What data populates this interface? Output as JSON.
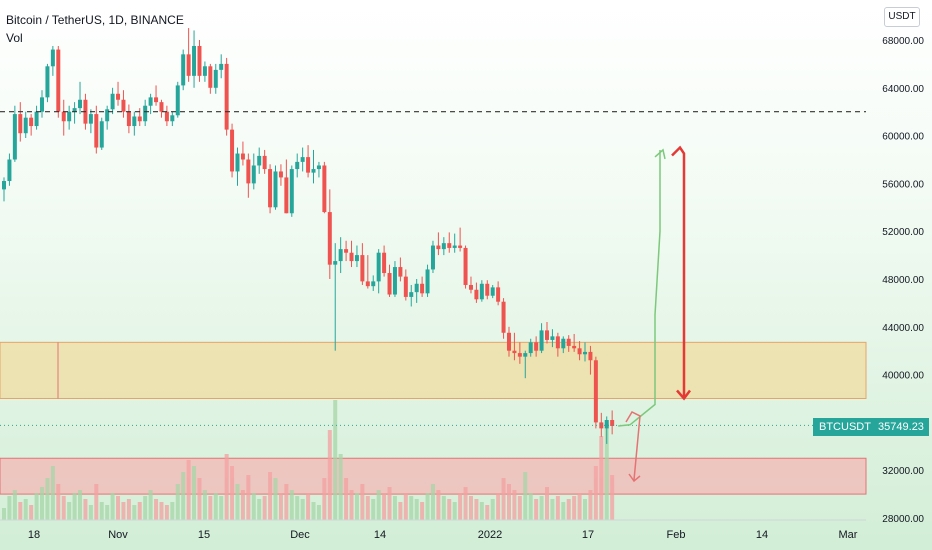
{
  "header": {
    "title": "Bitcoin / TetherUS, 1D, BINANCE",
    "indicator": "Vol",
    "currency": "USDT"
  },
  "last_price": {
    "symbol": "BTCUSDT",
    "value": "35749.23"
  },
  "colors": {
    "up": "#26a69a",
    "down": "#ef5350",
    "resistance_zone": "#f0dca0",
    "support_zone": "#f5b3b3",
    "background_top": "#ffffff",
    "background_bottom": "#d6f0d9",
    "arrow_up": "#7cc87c",
    "arrow_down": "#e53935"
  },
  "chart_data": {
    "type": "candlestick",
    "title": "Bitcoin / TetherUS, 1D, BINANCE",
    "ylim": [
      27000,
      70000
    ],
    "y_ticks": [
      "68000.00",
      "64000.00",
      "60000.00",
      "56000.00",
      "52000.00",
      "48000.00",
      "44000.00",
      "40000.00",
      "32000.00",
      "28000.00"
    ],
    "x_ticks": [
      "18",
      "Nov",
      "15",
      "Dec",
      "14",
      "2022",
      "17",
      "Feb",
      "14",
      "Mar"
    ],
    "x_tick_positions": [
      "2021-10-18",
      "2021-11-01",
      "2021-11-15",
      "2021-12-01",
      "2021-12-14",
      "2022-01-01",
      "2022-01-17",
      "2022-02-01",
      "2022-02-14",
      "2022-03-01"
    ],
    "candles_ohlc": [
      [
        55500,
        56500,
        54500,
        56200
      ],
      [
        56200,
        58500,
        55800,
        58000
      ],
      [
        58000,
        62500,
        57800,
        61800
      ],
      [
        61800,
        62800,
        59500,
        60200
      ],
      [
        60200,
        62000,
        59800,
        61500
      ],
      [
        61500,
        61800,
        60000,
        60800
      ],
      [
        60800,
        62500,
        60500,
        62000
      ],
      [
        62000,
        63800,
        61500,
        63200
      ],
      [
        63200,
        66000,
        62800,
        65800
      ],
      [
        65800,
        67500,
        65000,
        67200
      ],
      [
        67200,
        67500,
        61500,
        62000
      ],
      [
        62000,
        63000,
        60000,
        61200
      ],
      [
        61200,
        62500,
        60500,
        62000
      ],
      [
        62000,
        62800,
        61000,
        62300
      ],
      [
        62300,
        64500,
        61800,
        63000
      ],
      [
        63000,
        63500,
        60500,
        61000
      ],
      [
        61000,
        62200,
        60200,
        61800
      ],
      [
        61800,
        62500,
        58500,
        59000
      ],
      [
        59000,
        61500,
        58800,
        61200
      ],
      [
        61200,
        62500,
        60500,
        62200
      ],
      [
        62200,
        64000,
        61800,
        63500
      ],
      [
        63500,
        64500,
        62500,
        63000
      ],
      [
        63000,
        63800,
        61500,
        62000
      ],
      [
        62000,
        62600,
        60200,
        60800
      ],
      [
        60800,
        62000,
        60000,
        61600
      ],
      [
        61600,
        62300,
        60800,
        61200
      ],
      [
        61200,
        63000,
        60800,
        62500
      ],
      [
        62500,
        63500,
        61800,
        63200
      ],
      [
        63200,
        64200,
        62500,
        62800
      ],
      [
        62800,
        63000,
        61500,
        62000
      ],
      [
        62000,
        62500,
        60800,
        61200
      ],
      [
        61200,
        62000,
        60800,
        61700
      ],
      [
        61700,
        64500,
        61500,
        64200
      ],
      [
        64200,
        67200,
        63800,
        66800
      ],
      [
        66800,
        69000,
        64500,
        65000
      ],
      [
        65000,
        68800,
        64000,
        67500
      ],
      [
        67500,
        68000,
        64500,
        65000
      ],
      [
        65000,
        66200,
        64500,
        65800
      ],
      [
        65800,
        66000,
        63500,
        64000
      ],
      [
        64000,
        66000,
        63500,
        65500
      ],
      [
        65500,
        66800,
        64800,
        66000
      ],
      [
        66000,
        66500,
        60000,
        60500
      ],
      [
        60500,
        61000,
        56500,
        57000
      ],
      [
        57000,
        59000,
        55800,
        58500
      ],
      [
        58500,
        59500,
        57500,
        58000
      ],
      [
        58000,
        58500,
        54800,
        56000
      ],
      [
        56000,
        58500,
        55500,
        57500
      ],
      [
        57500,
        59000,
        56800,
        58300
      ],
      [
        58300,
        58800,
        56800,
        57200
      ],
      [
        57200,
        57600,
        53500,
        54000
      ],
      [
        54000,
        57500,
        53800,
        57000
      ],
      [
        57000,
        57600,
        55800,
        56500
      ],
      [
        56500,
        58000,
        53500,
        53500
      ],
      [
        53500,
        57500,
        53200,
        57200
      ],
      [
        57200,
        58500,
        56500,
        57800
      ],
      [
        57800,
        59000,
        57000,
        58200
      ],
      [
        58200,
        59200,
        56500,
        56900
      ],
      [
        56900,
        58800,
        56000,
        57200
      ],
      [
        57200,
        57800,
        56500,
        57500
      ],
      [
        57500,
        57800,
        53500,
        53600
      ],
      [
        53600,
        55500,
        48000,
        49200
      ],
      [
        49200,
        51000,
        42000,
        49500
      ],
      [
        49500,
        51500,
        48500,
        50500
      ],
      [
        50500,
        51200,
        49500,
        50200
      ],
      [
        50200,
        51200,
        49000,
        49500
      ],
      [
        49500,
        50800,
        49000,
        50000
      ],
      [
        50000,
        51000,
        47500,
        47800
      ],
      [
        47800,
        50000,
        47200,
        47400
      ],
      [
        47400,
        48300,
        47000,
        47800
      ],
      [
        47800,
        50500,
        46800,
        50200
      ],
      [
        50200,
        50800,
        48200,
        48500
      ],
      [
        48500,
        49200,
        46500,
        46700
      ],
      [
        46700,
        49500,
        46500,
        49000
      ],
      [
        49000,
        49800,
        47800,
        48200
      ],
      [
        48200,
        48800,
        46200,
        46500
      ],
      [
        46500,
        47500,
        45700,
        46900
      ],
      [
        46900,
        48000,
        46000,
        47600
      ],
      [
        47600,
        48200,
        46500,
        46800
      ],
      [
        46800,
        49200,
        46500,
        48800
      ],
      [
        48800,
        51200,
        48500,
        50800
      ],
      [
        50800,
        51900,
        50000,
        50500
      ],
      [
        50500,
        51500,
        50000,
        51000
      ],
      [
        51000,
        51900,
        50200,
        50600
      ],
      [
        50600,
        51800,
        50200,
        50800
      ],
      [
        50800,
        52300,
        50300,
        50600
      ],
      [
        50600,
        50800,
        47200,
        47500
      ],
      [
        47500,
        48200,
        46800,
        47100
      ],
      [
        47100,
        47700,
        46000,
        46300
      ],
      [
        46300,
        47900,
        46100,
        47600
      ],
      [
        47600,
        47900,
        46300,
        46600
      ],
      [
        46600,
        47500,
        46400,
        47300
      ],
      [
        47300,
        47800,
        45800,
        46100
      ],
      [
        46100,
        46400,
        43000,
        43500
      ],
      [
        43500,
        44000,
        41500,
        42000
      ],
      [
        42000,
        43500,
        41200,
        41800
      ],
      [
        41800,
        42700,
        40900,
        41500
      ],
      [
        41500,
        42000,
        39700,
        41800
      ],
      [
        41800,
        43000,
        41500,
        42700
      ],
      [
        42700,
        43200,
        41500,
        42000
      ],
      [
        42000,
        44300,
        41800,
        43700
      ],
      [
        43700,
        44400,
        42600,
        42900
      ],
      [
        42900,
        43800,
        42300,
        43200
      ],
      [
        43200,
        43500,
        41500,
        42200
      ],
      [
        42200,
        43200,
        41800,
        43000
      ],
      [
        43000,
        43300,
        41900,
        42400
      ],
      [
        42400,
        43400,
        41900,
        42200
      ],
      [
        42200,
        42800,
        41200,
        41700
      ],
      [
        41700,
        42700,
        41100,
        41900
      ],
      [
        41900,
        42400,
        40000,
        41200
      ],
      [
        41200,
        41500,
        35500,
        36000
      ],
      [
        36000,
        36800,
        34800,
        35500
      ],
      [
        35500,
        36500,
        34200,
        36200
      ],
      [
        36200,
        37000,
        35000,
        35700
      ]
    ],
    "volume_heights": [
      4,
      8,
      10,
      6,
      7,
      5,
      9,
      11,
      14,
      18,
      12,
      8,
      6,
      9,
      10,
      7,
      5,
      12,
      6,
      5,
      9,
      8,
      6,
      7,
      5,
      6,
      8,
      10,
      7,
      6,
      5,
      6,
      12,
      16,
      20,
      18,
      14,
      10,
      8,
      9,
      8,
      22,
      18,
      12,
      10,
      15,
      9,
      7,
      8,
      16,
      14,
      9,
      12,
      10,
      8,
      7,
      9,
      6,
      5,
      14,
      30,
      40,
      22,
      14,
      10,
      9,
      12,
      8,
      7,
      10,
      9,
      11,
      8,
      6,
      9,
      8,
      7,
      6,
      9,
      12,
      10,
      8,
      7,
      6,
      9,
      11,
      8,
      7,
      6,
      5,
      7,
      9,
      14,
      12,
      10,
      8,
      16,
      9,
      7,
      8,
      11,
      7,
      8,
      6,
      7,
      8,
      9,
      7,
      10,
      18,
      28,
      32,
      15
    ],
    "reference_level": 62000,
    "zones": [
      {
        "name": "resistance",
        "from": 38000,
        "to": 42700
      },
      {
        "name": "support",
        "from": 30000,
        "to": 33000
      }
    ],
    "projection_up": [
      [
        35700,
        35800
      ],
      [
        37500,
        45000
      ],
      [
        52000,
        58800
      ]
    ],
    "projection_down": [
      59000,
      38000
    ],
    "last_value": 35749.23
  }
}
